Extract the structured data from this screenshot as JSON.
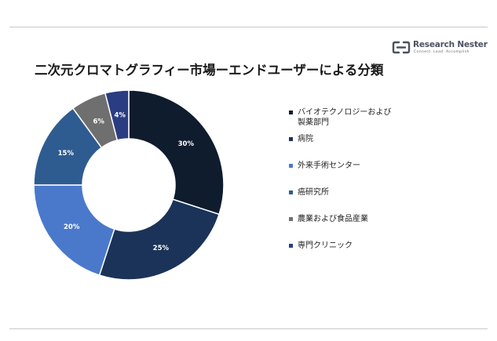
{
  "brand": {
    "name": "Research Nester",
    "tagline": "Connect. Lead. Accomplish"
  },
  "colors": {
    "navy": "#0f1c2e",
    "dark_blue": "#1b3358",
    "medium_blue": "#2e5c91",
    "light_blue": "#4a79cc",
    "gray": "#6f6f6f",
    "indigo": "#2b3d82"
  },
  "chart_data": {
    "type": "pie",
    "title": "二次元クロマトグラフィー市場ーエンドユーザーによる分類",
    "categories": [
      "バイオテクノロジーおよび製薬部門",
      "病院",
      "外来手術センター",
      "癌研究所",
      "農業および食品産業",
      "専門クリニック"
    ],
    "values": [
      30,
      25,
      20,
      15,
      6,
      4
    ],
    "value_labels": [
      "30%",
      "25%",
      "20%",
      "15%",
      "6%",
      "4%"
    ],
    "colors": [
      "#0f1c2e",
      "#1b3358",
      "#4a79cc",
      "#2e5c91",
      "#6f6f6f",
      "#2b3d82"
    ],
    "legend_position": "right",
    "donut": true
  }
}
